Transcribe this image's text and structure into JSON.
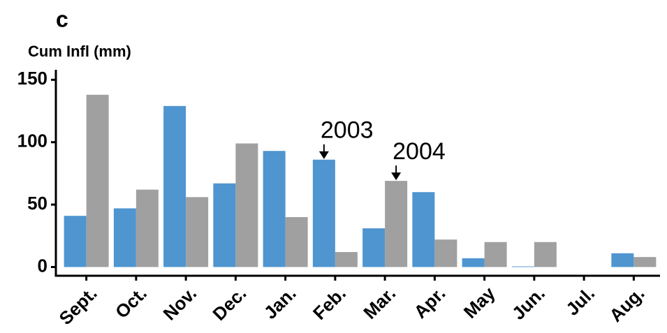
{
  "chart_data": {
    "type": "bar",
    "panel_label": "c",
    "y_label": "Cum Infl (mm)",
    "categories": [
      "Sept.",
      "Oct.",
      "Nov.",
      "Dec.",
      "Jan.",
      "Feb.",
      "Mar.",
      "Apr.",
      "May",
      "Jun.",
      "Jul.",
      "Aug."
    ],
    "series": [
      {
        "name": "2003",
        "color": "#4f95d0",
        "values": [
          41,
          47,
          129,
          67,
          93,
          86,
          31,
          60,
          7,
          0.5,
          0,
          11
        ]
      },
      {
        "name": "2004",
        "color": "#a0a0a0",
        "values": [
          138,
          62,
          56,
          99,
          40,
          12,
          69,
          22,
          20,
          20,
          0,
          8
        ]
      }
    ],
    "ylim": [
      -7,
      158
    ],
    "yticks": [
      0,
      50,
      100,
      150
    ],
    "grid": false
  }
}
